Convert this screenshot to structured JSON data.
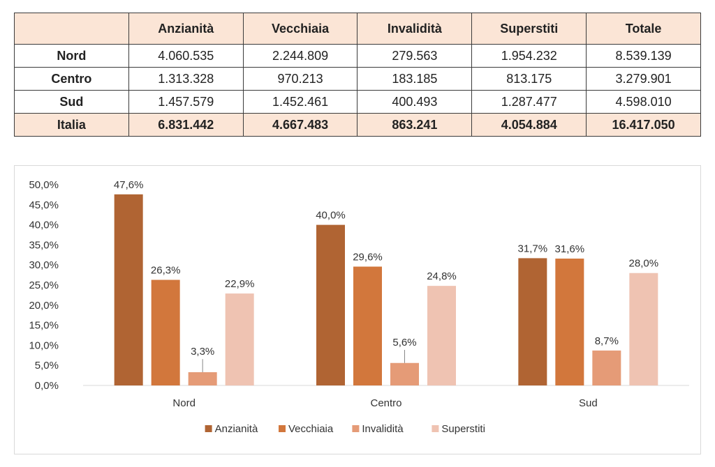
{
  "table": {
    "headers": [
      "",
      "Anzianità",
      "Vecchiaia",
      "Invalidità",
      "Superstiti",
      "Totale"
    ],
    "rows": [
      {
        "label": "Nord",
        "values": [
          "4.060.535",
          "2.244.809",
          "279.563",
          "1.954.232",
          "8.539.139"
        ]
      },
      {
        "label": "Centro",
        "values": [
          "1.313.328",
          "970.213",
          "183.185",
          "813.175",
          "3.279.901"
        ]
      },
      {
        "label": "Sud",
        "values": [
          "1.457.579",
          "1.452.461",
          "400.493",
          "1.287.477",
          "4.598.010"
        ]
      },
      {
        "label": "Italia",
        "values": [
          "6.831.442",
          "4.667.483",
          "863.241",
          "4.054.884",
          "16.417.050"
        ]
      }
    ]
  },
  "chart_data": {
    "type": "bar",
    "categories": [
      "Nord",
      "Centro",
      "Sud"
    ],
    "series": [
      {
        "name": "Anzianità",
        "values": [
          47.6,
          40.0,
          31.7
        ],
        "labels": [
          "47,6%",
          "40,0%",
          "31,7%"
        ],
        "color": "#b06433"
      },
      {
        "name": "Vecchiaia",
        "values": [
          26.3,
          29.6,
          31.6
        ],
        "labels": [
          "26,3%",
          "29,6%",
          "31,6%"
        ],
        "color": "#d2773c"
      },
      {
        "name": "Invalidità",
        "values": [
          3.3,
          5.6,
          8.7
        ],
        "labels": [
          "3,3%",
          "5,6%",
          "8,7%"
        ],
        "color": "#e59b77"
      },
      {
        "name": "Superstiti",
        "values": [
          22.9,
          24.8,
          28.0
        ],
        "labels": [
          "22,9%",
          "24,8%",
          "28,0%"
        ],
        "color": "#efc3b2"
      }
    ],
    "ylim": [
      0,
      50
    ],
    "yticks": [
      "0,0%",
      "5,0%",
      "10,0%",
      "15,0%",
      "20,0%",
      "25,0%",
      "30,0%",
      "35,0%",
      "40,0%",
      "45,0%",
      "50,0%"
    ],
    "grid": false,
    "legend": "bottom"
  }
}
